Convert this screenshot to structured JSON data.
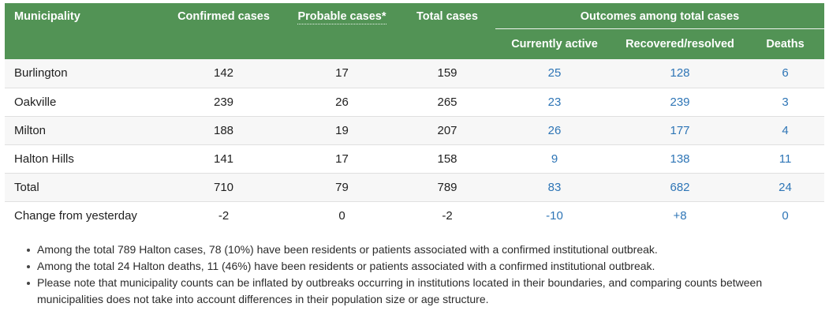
{
  "table": {
    "header": {
      "municipality": "Municipality",
      "confirmed": "Confirmed cases",
      "probable": "Probable cases*",
      "total": "Total cases",
      "outcomes_group": "Outcomes among total cases",
      "active": "Currently active",
      "recovered": "Recovered/resolved",
      "deaths": "Deaths"
    },
    "rows": [
      {
        "label": "Burlington",
        "values": [
          "142",
          "17",
          "159",
          "25",
          "128",
          "6"
        ]
      },
      {
        "label": "Oakville",
        "values": [
          "239",
          "26",
          "265",
          "23",
          "239",
          "3"
        ]
      },
      {
        "label": "Milton",
        "values": [
          "188",
          "19",
          "207",
          "26",
          "177",
          "4"
        ]
      },
      {
        "label": "Halton Hills",
        "values": [
          "141",
          "17",
          "158",
          "9",
          "138",
          "11"
        ]
      },
      {
        "label": "Total",
        "values": [
          "710",
          "79",
          "789",
          "83",
          "682",
          "24"
        ]
      },
      {
        "label": "Change from yesterday",
        "values": [
          "-2",
          "0",
          "-2",
          "-10",
          "+8",
          "0"
        ]
      }
    ]
  },
  "notes": [
    "Among the total 789 Halton cases, 78 (10%) have been residents or patients associated with a confirmed institutional outbreak.",
    "Among the total 24 Halton deaths, 11 (46%) have been residents or patients associated with a confirmed institutional outbreak.",
    "Please note that municipality counts can be inflated by outbreaks occurring in institutions located in their boundaries, and comparing counts between municipalities does not take into account differences in their population size or age structure."
  ],
  "colors": {
    "header_green": "#529355",
    "outcome_blue": "#2e75b6"
  }
}
